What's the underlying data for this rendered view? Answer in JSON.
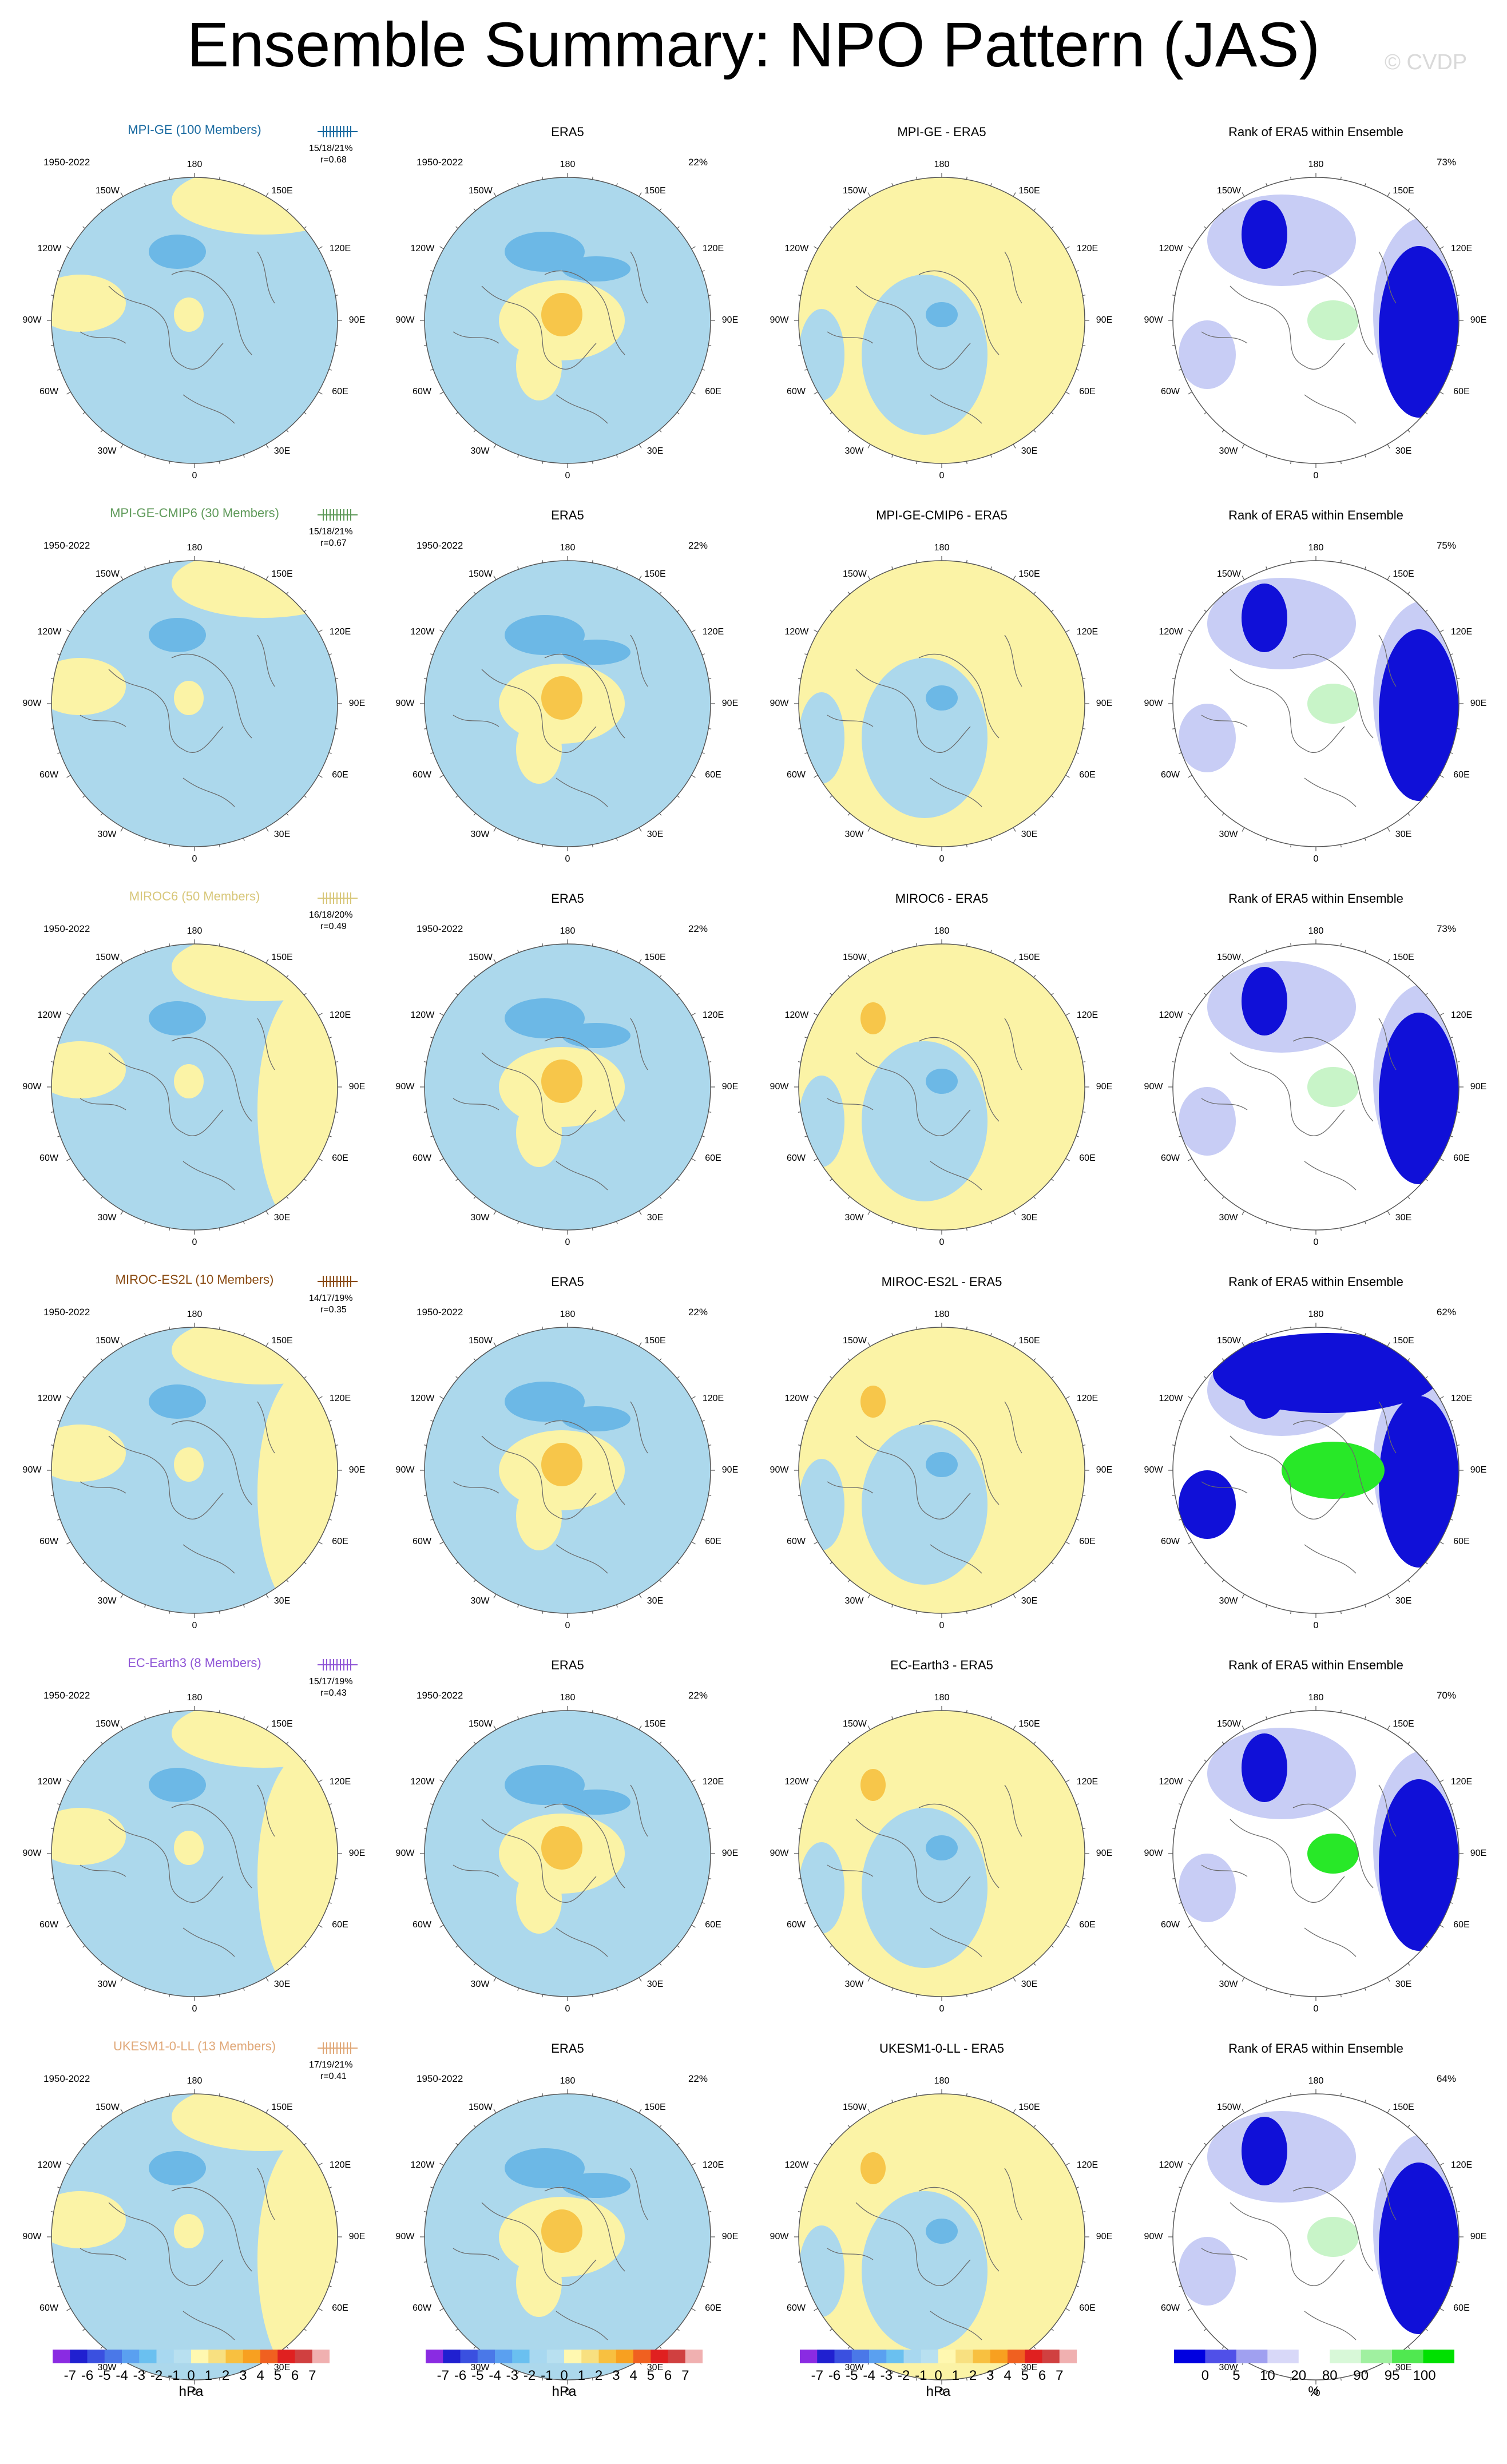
{
  "title": "Ensemble Summary: NPO Pattern (JAS)",
  "watermark": "© CVDP",
  "longitude_labels": [
    "180",
    "150E",
    "120E",
    "90E",
    "60E",
    "30E",
    "0",
    "30W",
    "60W",
    "90W",
    "120W",
    "150W"
  ],
  "rows": [
    {
      "model": "MPI-GE (100 Members)",
      "model_color": "#1a6aa0",
      "stats": "15/18/21%",
      "corr": "r=0.68",
      "period": "1950-2022",
      "era5_pct": "22%",
      "diff_title": "MPI-GE - ERA5",
      "rank_pct": "73%"
    },
    {
      "model": "MPI-GE-CMIP6 (30 Members)",
      "model_color": "#5f9a5a",
      "stats": "15/18/21%",
      "corr": "r=0.67",
      "period": "1950-2022",
      "era5_pct": "22%",
      "diff_title": "MPI-GE-CMIP6 - ERA5",
      "rank_pct": "75%"
    },
    {
      "model": "MIROC6 (50 Members)",
      "model_color": "#d8c77a",
      "stats": "16/18/20%",
      "corr": "r=0.49",
      "period": "1950-2022",
      "era5_pct": "22%",
      "diff_title": "MIROC6 - ERA5",
      "rank_pct": "73%"
    },
    {
      "model": "MIROC-ES2L (10 Members)",
      "model_color": "#8a4b12",
      "stats": "14/17/19%",
      "corr": "r=0.35",
      "period": "1950-2022",
      "era5_pct": "22%",
      "diff_title": "MIROC-ES2L - ERA5",
      "rank_pct": "62%"
    },
    {
      "model": "EC-Earth3 (8 Members)",
      "model_color": "#8f55d6",
      "stats": "15/17/19%",
      "corr": "r=0.43",
      "period": "1950-2022",
      "era5_pct": "22%",
      "diff_title": "EC-Earth3 - ERA5",
      "rank_pct": "70%"
    },
    {
      "model": "UKESM1-0-LL (13 Members)",
      "model_color": "#e0a878",
      "stats": "17/19/21%",
      "corr": "r=0.41",
      "period": "1950-2022",
      "era5_pct": "22%",
      "diff_title": "UKESM1-0-LL - ERA5",
      "rank_pct": "64%"
    }
  ],
  "panel_titles": {
    "obs": "ERA5",
    "rank": "Rank of ERA5 within Ensemble"
  },
  "colorbar_hpa": {
    "ticks": [
      "-7",
      "-6",
      "-5",
      "-4",
      "-3",
      "-2",
      "-1",
      "0",
      "1",
      "2",
      "3",
      "4",
      "5",
      "6",
      "7"
    ],
    "unit": "hPa",
    "colors": [
      "#8a2be2",
      "#2020d0",
      "#3a50e0",
      "#4a78e8",
      "#5aa0f0",
      "#6ac0f0",
      "#a8d8f0",
      "#b8e0f0",
      "#fff8b0",
      "#f8e080",
      "#f8c040",
      "#f8a020",
      "#f06020",
      "#e02020",
      "#d04040",
      "#f0b0b0"
    ]
  },
  "colorbar_rank": {
    "ticks": [
      "0",
      "5",
      "10",
      "20",
      "80",
      "90",
      "95",
      "100"
    ],
    "unit": "%",
    "colors": [
      "#0000e0",
      "#5050e8",
      "#a0a0f0",
      "#d8d8f8",
      "#ffffff",
      "#d8f8d8",
      "#a0f0a0",
      "#50e850",
      "#00e000"
    ]
  }
}
